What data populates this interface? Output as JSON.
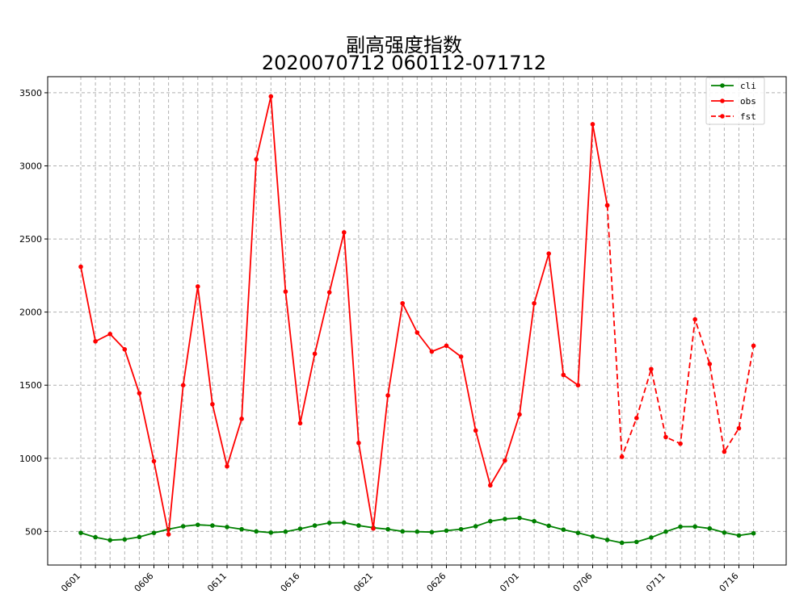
{
  "chart_data": {
    "type": "line",
    "title": "副高强度指数",
    "subtitle": "2020070712 060112-071712",
    "xlabel": "",
    "ylabel": "",
    "ylim": [
      270,
      3610
    ],
    "yticks": [
      500,
      1000,
      1500,
      2000,
      2500,
      3000,
      3500
    ],
    "grid": true,
    "legend_position": "top-right",
    "dates": [
      "0601",
      "0602",
      "0603",
      "0604",
      "0605",
      "0606",
      "0607",
      "0608",
      "0609",
      "0610",
      "0611",
      "0612",
      "0613",
      "0614",
      "0615",
      "0616",
      "0617",
      "0618",
      "0619",
      "0620",
      "0621",
      "0622",
      "0623",
      "0624",
      "0625",
      "0626",
      "0627",
      "0628",
      "0629",
      "0630",
      "0701",
      "0702",
      "0703",
      "0704",
      "0705",
      "0706",
      "0707",
      "0708",
      "0709",
      "0710",
      "0711",
      "0712",
      "0713",
      "0714",
      "0715",
      "0716",
      "0717"
    ],
    "xtick_labels": [
      "0601",
      "0606",
      "0611",
      "0616",
      "0621",
      "0626",
      "0701",
      "0706",
      "0711",
      "0716"
    ],
    "series": [
      {
        "name": "cli",
        "color": "#008000",
        "style": "solid",
        "values": [
          490,
          460,
          440,
          445,
          462,
          490,
          515,
          535,
          545,
          540,
          530,
          515,
          500,
          492,
          498,
          518,
          540,
          558,
          560,
          540,
          525,
          515,
          500,
          498,
          495,
          505,
          515,
          535,
          570,
          585,
          592,
          570,
          538,
          512,
          490,
          465,
          442,
          422,
          428,
          458,
          498,
          532,
          533,
          520,
          492,
          472,
          487
        ]
      },
      {
        "name": "obs",
        "color": "#ff0000",
        "style": "solid",
        "values": [
          2310,
          1800,
          1850,
          1745,
          1445,
          980,
          480,
          1500,
          2175,
          1370,
          945,
          1270,
          3045,
          3475,
          2140,
          1240,
          1715,
          2135,
          2545,
          1105,
          520,
          1430,
          2060,
          1860,
          1730,
          1770,
          1695,
          1190,
          815,
          985,
          1300,
          2060,
          2400,
          1570,
          1500,
          3285,
          2730,
          null,
          null,
          null,
          null,
          null,
          null,
          null,
          null,
          null,
          null
        ]
      },
      {
        "name": "fst",
        "color": "#ff0000",
        "style": "dashed",
        "values": [
          null,
          null,
          null,
          null,
          null,
          null,
          null,
          null,
          null,
          null,
          null,
          null,
          null,
          null,
          null,
          null,
          null,
          null,
          null,
          null,
          null,
          null,
          null,
          null,
          null,
          null,
          null,
          null,
          null,
          null,
          null,
          null,
          null,
          null,
          null,
          null,
          2730,
          1010,
          1275,
          1610,
          1145,
          1100,
          1950,
          1645,
          1045,
          1205,
          1770
        ]
      }
    ]
  }
}
